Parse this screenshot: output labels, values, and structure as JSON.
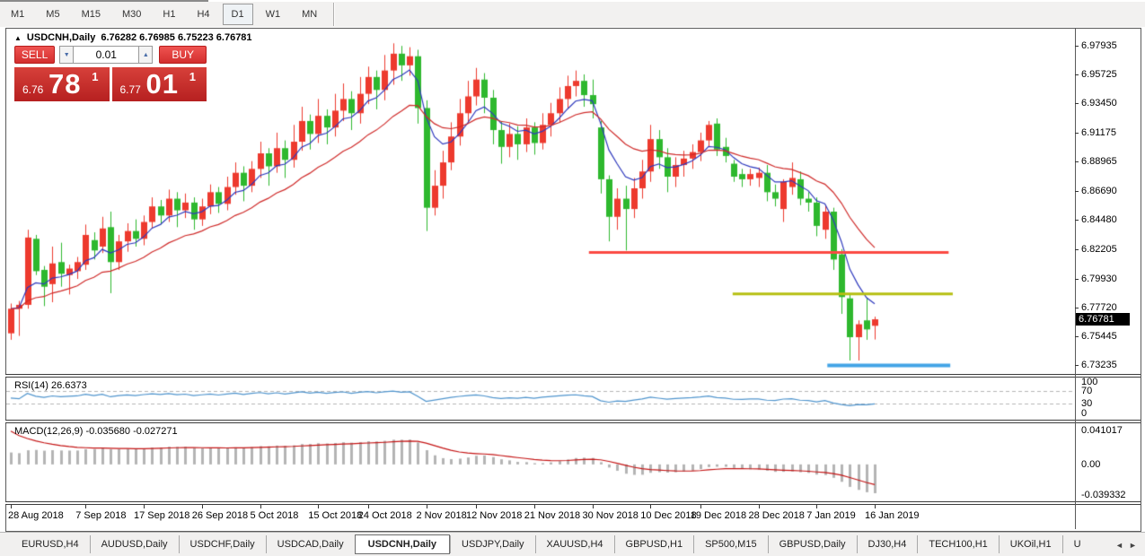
{
  "toolbar": {
    "timeframes": [
      "M1",
      "M5",
      "M15",
      "M30",
      "H1",
      "H4",
      "D1",
      "W1",
      "MN"
    ],
    "active": "D1"
  },
  "chart_header": {
    "collapse_icon": "▲",
    "symbol": "USDCNH,Daily",
    "ohlc": "6.76282 6.76985 6.75223 6.76781"
  },
  "trade_panel": {
    "sell_label": "SELL",
    "buy_label": "BUY",
    "volume": "0.01",
    "spinner_down": "▼",
    "spinner_up": "▲",
    "sell_price": {
      "small": "6.76",
      "big": "78",
      "sup": "1"
    },
    "buy_price": {
      "small": "6.77",
      "big": "01",
      "sup": "1"
    }
  },
  "price_axis": {
    "labels": [
      "6.97935",
      "6.95725",
      "6.93450",
      "6.91175",
      "6.88965",
      "6.86690",
      "6.84480",
      "6.82205",
      "6.79930",
      "6.77720",
      "6.75445",
      "6.73235"
    ],
    "current": "6.76781"
  },
  "rsi_panel": {
    "title": "RSI(14) 26.6373",
    "axis_labels": [
      "100",
      "70",
      "30",
      "0"
    ],
    "levels": [
      70,
      30
    ]
  },
  "macd_panel": {
    "title": "MACD(12,26,9) -0.035680 -0.027271",
    "axis_labels": [
      "0.041017",
      "0.00",
      "-0.039332"
    ]
  },
  "date_axis": {
    "labels": [
      "28 Aug 2018",
      "7 Sep 2018",
      "17 Sep 2018",
      "26 Sep 2018",
      "5 Oct 2018",
      "15 Oct 2018",
      "24 Oct 2018",
      "2 Nov 2018",
      "12 Nov 2018",
      "21 Nov 2018",
      "30 Nov 2018",
      "10 Dec 2018",
      "19 Dec 2018",
      "28 Dec 2018",
      "7 Jan 2019",
      "16 Jan 2019"
    ],
    "tick_indices": [
      0,
      9,
      16,
      23,
      30,
      37,
      43,
      50,
      56,
      63,
      70,
      77,
      83,
      90,
      97,
      104
    ]
  },
  "tab_bar": {
    "tabs": [
      "EURUSD,H4",
      "AUDUSD,Daily",
      "USDCHF,Daily",
      "USDCAD,Daily",
      "USDCNH,Daily",
      "USDJPY,Daily",
      "XAUUSD,H4",
      "GBPUSD,H1",
      "SP500,M15",
      "GBPUSD,Daily",
      "DJ30,H4",
      "TECH100,H1",
      "UKOil,H1",
      "U"
    ],
    "active": "USDCNH,Daily",
    "scroll_left": "◄",
    "scroll_right": "►"
  },
  "chart_data": {
    "type": "candlestick",
    "title": "USDCNH,Daily",
    "last_ohlc": {
      "open": 6.76282,
      "high": 6.76985,
      "low": 6.75223,
      "close": 6.76781
    },
    "y_range": [
      6.7263,
      6.9923
    ],
    "grid": false,
    "colors": {
      "bull": "#ed3a2e",
      "bear": "#2eb82e",
      "ma_fast": "#2e39bd",
      "ma_slow": "#cf2a29",
      "rsi_line": "#4f94cd",
      "rsi_level": "#b5b5b5",
      "macd_hist": "#b4b4b4",
      "macd_signal": "#c41414",
      "hline_red": "#fb4a43",
      "hline_olive": "#b6bf12",
      "hline_blue": "#43a4e6"
    },
    "overlays": {
      "ma_fast_period": 6,
      "ma_slow_period": 18
    },
    "indicators": {
      "rsi_period": 14,
      "rsi_last": 26.6373,
      "rsi_range": [
        0,
        100
      ],
      "macd_params": [
        12,
        26,
        9
      ],
      "macd_last": -0.03568,
      "macd_signal_last": -0.027271,
      "macd_y_range": [
        -0.042,
        0.048
      ],
      "macd_seed": 0.015,
      "signal_seed": 0.045
    },
    "hlines": [
      {
        "name": "resistance-red",
        "price": 6.8195,
        "i1": 69.6,
        "i2": 112.9,
        "color": "#fb4a43",
        "width": 3
      },
      {
        "name": "level-olive",
        "price": 6.7875,
        "i1": 86.9,
        "i2": 113.4,
        "color": "#b6bf12",
        "width": 3
      },
      {
        "name": "support-blue",
        "price": 6.7322,
        "i1": 98.3,
        "i2": 113.1,
        "color": "#43a4e6",
        "width": 4
      }
    ],
    "candles": [
      [
        6.757,
        6.78,
        6.752,
        6.776
      ],
      [
        6.776,
        6.782,
        6.755,
        6.779
      ],
      [
        6.779,
        6.837,
        6.776,
        6.831
      ],
      [
        6.83,
        6.833,
        6.802,
        6.805
      ],
      [
        6.806,
        6.809,
        6.778,
        6.793
      ],
      [
        6.795,
        6.824,
        6.781,
        6.811
      ],
      [
        6.812,
        6.827,
        6.793,
        6.803
      ],
      [
        6.802,
        6.81,
        6.787,
        6.807
      ],
      [
        6.805,
        6.816,
        6.799,
        6.812
      ],
      [
        6.81,
        6.841,
        6.806,
        6.833
      ],
      [
        6.829,
        6.835,
        6.814,
        6.821
      ],
      [
        6.824,
        6.847,
        6.819,
        6.838
      ],
      [
        6.839,
        6.851,
        6.788,
        6.812
      ],
      [
        6.812,
        6.833,
        6.806,
        6.828
      ],
      [
        6.828,
        6.842,
        6.82,
        6.836
      ],
      [
        6.836,
        6.845,
        6.824,
        6.83
      ],
      [
        6.83,
        6.848,
        6.825,
        6.843
      ],
      [
        6.843,
        6.862,
        6.838,
        6.855
      ],
      [
        6.855,
        6.86,
        6.841,
        6.848
      ],
      [
        6.848,
        6.868,
        6.843,
        6.861
      ],
      [
        6.861,
        6.866,
        6.839,
        6.852
      ],
      [
        6.852,
        6.865,
        6.846,
        6.858
      ],
      [
        6.858,
        6.862,
        6.837,
        6.845
      ],
      [
        6.845,
        6.861,
        6.84,
        6.855
      ],
      [
        6.855,
        6.872,
        6.849,
        6.866
      ],
      [
        6.866,
        6.87,
        6.85,
        6.857
      ],
      [
        6.857,
        6.878,
        6.852,
        6.87
      ],
      [
        6.87,
        6.889,
        6.864,
        6.881
      ],
      [
        6.881,
        6.886,
        6.859,
        6.871
      ],
      [
        6.871,
        6.89,
        6.866,
        6.884
      ],
      [
        6.884,
        6.905,
        6.877,
        6.896
      ],
      [
        6.896,
        6.9,
        6.871,
        6.886
      ],
      [
        6.886,
        6.912,
        6.881,
        6.9
      ],
      [
        6.9,
        6.906,
        6.877,
        6.891
      ],
      [
        6.891,
        6.918,
        6.885,
        6.905
      ],
      [
        6.905,
        6.932,
        6.898,
        6.921
      ],
      [
        6.921,
        6.926,
        6.899,
        6.911
      ],
      [
        6.911,
        6.938,
        6.904,
        6.925
      ],
      [
        6.925,
        6.93,
        6.903,
        6.916
      ],
      [
        6.916,
        6.942,
        6.909,
        6.929
      ],
      [
        6.929,
        6.95,
        6.921,
        6.938
      ],
      [
        6.938,
        6.944,
        6.914,
        6.927
      ],
      [
        6.927,
        6.955,
        6.919,
        6.942
      ],
      [
        6.942,
        6.963,
        6.934,
        6.955
      ],
      [
        6.955,
        6.96,
        6.93,
        6.945
      ],
      [
        6.945,
        6.972,
        6.937,
        6.96
      ],
      [
        6.96,
        6.981,
        6.949,
        6.973
      ],
      [
        6.973,
        6.979,
        6.952,
        6.964
      ],
      [
        6.964,
        6.978,
        6.956,
        6.971
      ],
      [
        6.971,
        6.976,
        6.919,
        6.931
      ],
      [
        6.931,
        6.937,
        6.836,
        6.854
      ],
      [
        6.854,
        6.883,
        6.848,
        6.871
      ],
      [
        6.871,
        6.898,
        6.861,
        6.889
      ],
      [
        6.889,
        6.92,
        6.883,
        6.909
      ],
      [
        6.909,
        6.938,
        6.902,
        6.927
      ],
      [
        6.927,
        6.952,
        6.92,
        6.94
      ],
      [
        6.94,
        6.962,
        6.933,
        6.953
      ],
      [
        6.953,
        6.958,
        6.927,
        6.939
      ],
      [
        6.939,
        6.945,
        6.903,
        6.914
      ],
      [
        6.914,
        6.921,
        6.888,
        6.901
      ],
      [
        6.901,
        6.919,
        6.893,
        6.911
      ],
      [
        6.911,
        6.917,
        6.891,
        6.903
      ],
      [
        6.903,
        6.923,
        6.897,
        6.916
      ],
      [
        6.916,
        6.92,
        6.895,
        6.904
      ],
      [
        6.904,
        6.927,
        6.899,
        6.918
      ],
      [
        6.918,
        6.935,
        6.909,
        6.927
      ],
      [
        6.927,
        6.947,
        6.92,
        6.938
      ],
      [
        6.938,
        6.956,
        6.931,
        6.948
      ],
      [
        6.948,
        6.96,
        6.94,
        6.952
      ],
      [
        6.952,
        6.957,
        6.932,
        6.941
      ],
      [
        6.941,
        6.953,
        6.923,
        6.934
      ],
      [
        6.916,
        6.921,
        6.865,
        6.876
      ],
      [
        6.876,
        6.879,
        6.828,
        6.847
      ],
      [
        6.847,
        6.869,
        6.837,
        6.861
      ],
      [
        6.861,
        6.871,
        6.821,
        6.853
      ],
      [
        6.853,
        6.877,
        6.846,
        6.869
      ],
      [
        6.869,
        6.891,
        6.861,
        6.882
      ],
      [
        6.882,
        6.918,
        6.874,
        6.907
      ],
      [
        6.907,
        6.914,
        6.884,
        6.893
      ],
      [
        6.893,
        6.9,
        6.866,
        6.878
      ],
      [
        6.878,
        6.893,
        6.87,
        6.887
      ],
      [
        6.887,
        6.898,
        6.878,
        6.892
      ],
      [
        6.892,
        6.903,
        6.884,
        6.897
      ],
      [
        6.897,
        6.912,
        6.89,
        6.906
      ],
      [
        6.906,
        6.921,
        6.901,
        6.918
      ],
      [
        6.919,
        6.923,
        6.894,
        6.899
      ],
      [
        6.901,
        6.908,
        6.889,
        6.894
      ],
      [
        6.888,
        6.891,
        6.874,
        6.878
      ],
      [
        6.88,
        6.884,
        6.87,
        6.876
      ],
      [
        6.876,
        6.884,
        6.871,
        6.88
      ],
      [
        6.877,
        6.885,
        6.87,
        6.881
      ],
      [
        6.881,
        6.887,
        6.859,
        6.866
      ],
      [
        6.866,
        6.872,
        6.855,
        6.861
      ],
      [
        6.853,
        6.876,
        6.843,
        6.874
      ],
      [
        6.87,
        6.889,
        6.864,
        6.877
      ],
      [
        6.876,
        6.882,
        6.856,
        6.861
      ],
      [
        6.861,
        6.866,
        6.851,
        6.858
      ],
      [
        6.858,
        6.862,
        6.832,
        6.84
      ],
      [
        6.837,
        6.856,
        6.83,
        6.851
      ],
      [
        6.851,
        6.854,
        6.806,
        6.814
      ],
      [
        6.818,
        6.822,
        6.772,
        6.785
      ],
      [
        6.784,
        6.788,
        6.736,
        6.754
      ],
      [
        6.754,
        6.767,
        6.736,
        6.764
      ],
      [
        6.767,
        6.784,
        6.752,
        6.76
      ],
      [
        6.76282,
        6.76985,
        6.75223,
        6.76781
      ]
    ]
  }
}
